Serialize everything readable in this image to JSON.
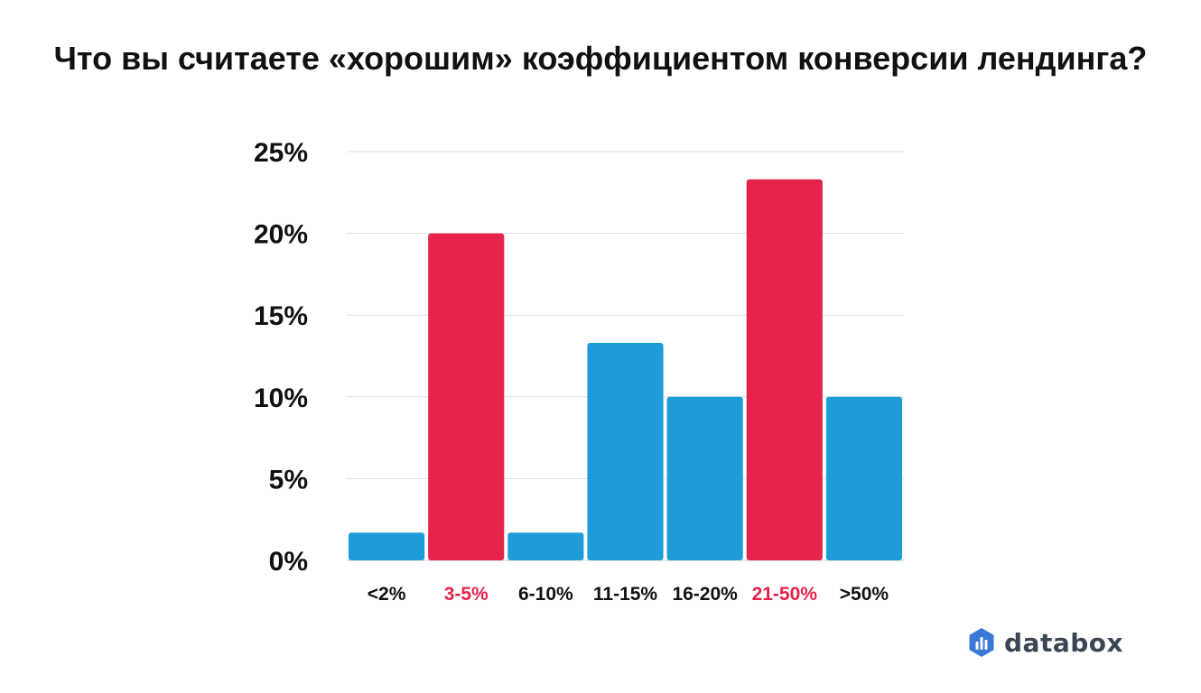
{
  "chart_data": {
    "type": "bar",
    "title": "Что вы считаете «хорошим» коэффициентом конверсии лендинга?",
    "categories": [
      "<2%",
      "3-5%",
      "6-10%",
      "11-15%",
      "16-20%",
      "21-50%",
      ">50%"
    ],
    "values": [
      1.7,
      20.0,
      1.7,
      13.3,
      10.0,
      23.3,
      10.0
    ],
    "highlighted": [
      false,
      true,
      false,
      false,
      false,
      true,
      false
    ],
    "y_ticks": [
      "0%",
      "5%",
      "10%",
      "15%",
      "20%",
      "25%"
    ],
    "ylim": [
      0,
      25
    ],
    "grid": true,
    "colors": {
      "normal": "#1e9cd7",
      "highlight": "#e5234b",
      "grid": "#dddddd",
      "label_normal": "#111111",
      "label_highlight": "#e5234b"
    }
  },
  "brand": {
    "name": "databox",
    "icon": "databox-logo-icon",
    "icon_color": "#3a78d6"
  }
}
